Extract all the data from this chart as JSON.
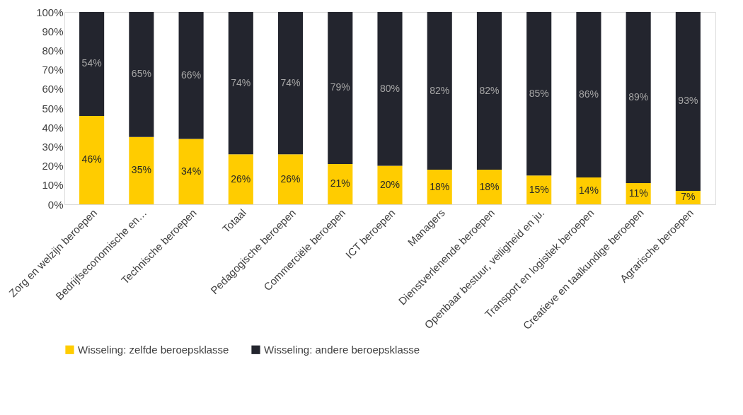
{
  "chart_data": {
    "type": "bar",
    "stacked": true,
    "categories": [
      "Zorg en welzijn beroepen",
      "Bedrijfseconomische en…",
      "Technische beroepen",
      "Totaal",
      "Pedagogische beroepen",
      "Commerciële beroepen",
      "ICT beroepen",
      "Managers",
      "Dienstverlenende beroepen",
      "Openbaar bestuur, veiligheid en ju.",
      "Transport en logistiek beroepen",
      "Creatieve en taalkundige beroepen",
      "Agrarische beroepen"
    ],
    "series": [
      {
        "name": "Wisseling: zelfde beroepsklasse",
        "color": "#ffcc00",
        "values": [
          46,
          35,
          34,
          26,
          26,
          21,
          20,
          18,
          18,
          15,
          14,
          11,
          7
        ],
        "value_labels": [
          "46%",
          "35%",
          "34%",
          "26%",
          "26%",
          "21%",
          "20%",
          "18%",
          "18%",
          "15%",
          "14%",
          "11%",
          "7%"
        ]
      },
      {
        "name": "Wisseling: andere beroepsklasse",
        "color": "#23252e",
        "values": [
          54,
          65,
          66,
          74,
          74,
          79,
          80,
          82,
          82,
          85,
          86,
          89,
          93
        ],
        "value_labels": [
          "54%",
          "65%",
          "66%",
          "74%",
          "74%",
          "79%",
          "80%",
          "82%",
          "82%",
          "85%",
          "86%",
          "89%",
          "93%"
        ]
      }
    ],
    "ylim": [
      0,
      100
    ],
    "yticks": [
      {
        "value": 0,
        "label": "0%"
      },
      {
        "value": 10,
        "label": "10%"
      },
      {
        "value": 20,
        "label": "20%"
      },
      {
        "value": 30,
        "label": "30%"
      },
      {
        "value": 40,
        "label": "40%"
      },
      {
        "value": 50,
        "label": "50%"
      },
      {
        "value": 60,
        "label": "60%"
      },
      {
        "value": 70,
        "label": "70%"
      },
      {
        "value": 80,
        "label": "80%"
      },
      {
        "value": 90,
        "label": "90%"
      },
      {
        "value": 100,
        "label": "100%"
      }
    ],
    "grid": false,
    "legend": "bottom"
  }
}
